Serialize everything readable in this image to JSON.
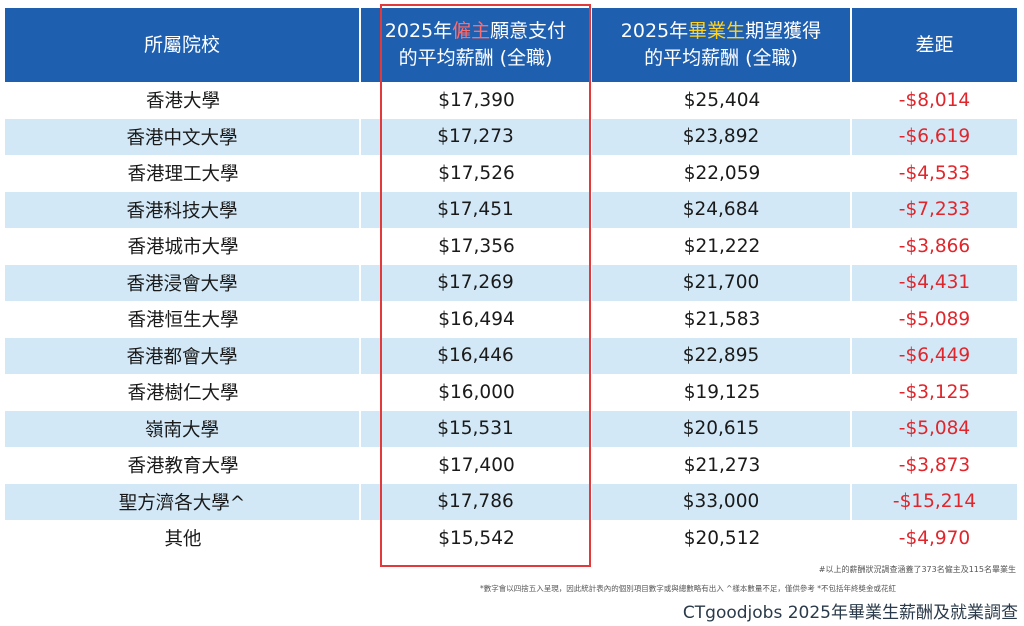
{
  "header": {
    "col1": "所屬院校",
    "col2_pre": "2025年",
    "col2_hl": "僱主",
    "col2_post": "願意支付",
    "col2_line2": "的平均薪酬 (全職)",
    "col3_pre": "2025年",
    "col3_hl": "畢業生",
    "col3_post": "期望獲得",
    "col3_line2": "的平均薪酬 (全職)",
    "col4": "差距"
  },
  "rows": [
    {
      "school": "香港大學",
      "employer": "$17,390",
      "graduate": "$25,404",
      "diff": "-$8,014"
    },
    {
      "school": "香港中文大學",
      "employer": "$17,273",
      "graduate": "$23,892",
      "diff": "-$6,619"
    },
    {
      "school": "香港理工大學",
      "employer": "$17,526",
      "graduate": "$22,059",
      "diff": "-$4,533"
    },
    {
      "school": "香港科技大學",
      "employer": "$17,451",
      "graduate": "$24,684",
      "diff": "-$7,233"
    },
    {
      "school": "香港城市大學",
      "employer": "$17,356",
      "graduate": "$21,222",
      "diff": "-$3,866"
    },
    {
      "school": "香港浸會大學",
      "employer": "$17,269",
      "graduate": "$21,700",
      "diff": "-$4,431"
    },
    {
      "school": "香港恒生大學",
      "employer": "$16,494",
      "graduate": "$21,583",
      "diff": "-$5,089"
    },
    {
      "school": "香港都會大學",
      "employer": "$16,446",
      "graduate": "$22,895",
      "diff": "-$6,449"
    },
    {
      "school": "香港樹仁大學",
      "employer": "$16,000",
      "graduate": "$19,125",
      "diff": "-$3,125"
    },
    {
      "school": "嶺南大學",
      "employer": "$15,531",
      "graduate": "$20,615",
      "diff": "-$5,084"
    },
    {
      "school": "香港教育大學",
      "employer": "$17,400",
      "graduate": "$21,273",
      "diff": "-$3,873"
    },
    {
      "school": "聖方濟各大學^",
      "employer": "$17,786",
      "graduate": "$33,000",
      "diff": "-$15,214"
    },
    {
      "school": "其他",
      "employer": "$15,542",
      "graduate": "$20,512",
      "diff": "-$4,970"
    }
  ],
  "notes": {
    "note1": "#以上的薪酬狀況調查涵蓋了373名僱主及115名畢業生",
    "note2": "*數字會以四捨五入呈現，因此統計表內的個別項目數字或與總數略有出入    ^樣本數量不足，僅供參考    *不包括年終獎金或花紅"
  },
  "source": "CTgoodjobs 2025年畢業生薪酬及就業調查",
  "colors": {
    "header_bg": "#1e5fb0",
    "alt_row_bg": "#d2e8f7",
    "diff_text": "#e0252b",
    "highlight_border": "#e23a3a",
    "employer_highlight": "#ff6b6b",
    "graduate_highlight": "#ffd21f"
  }
}
